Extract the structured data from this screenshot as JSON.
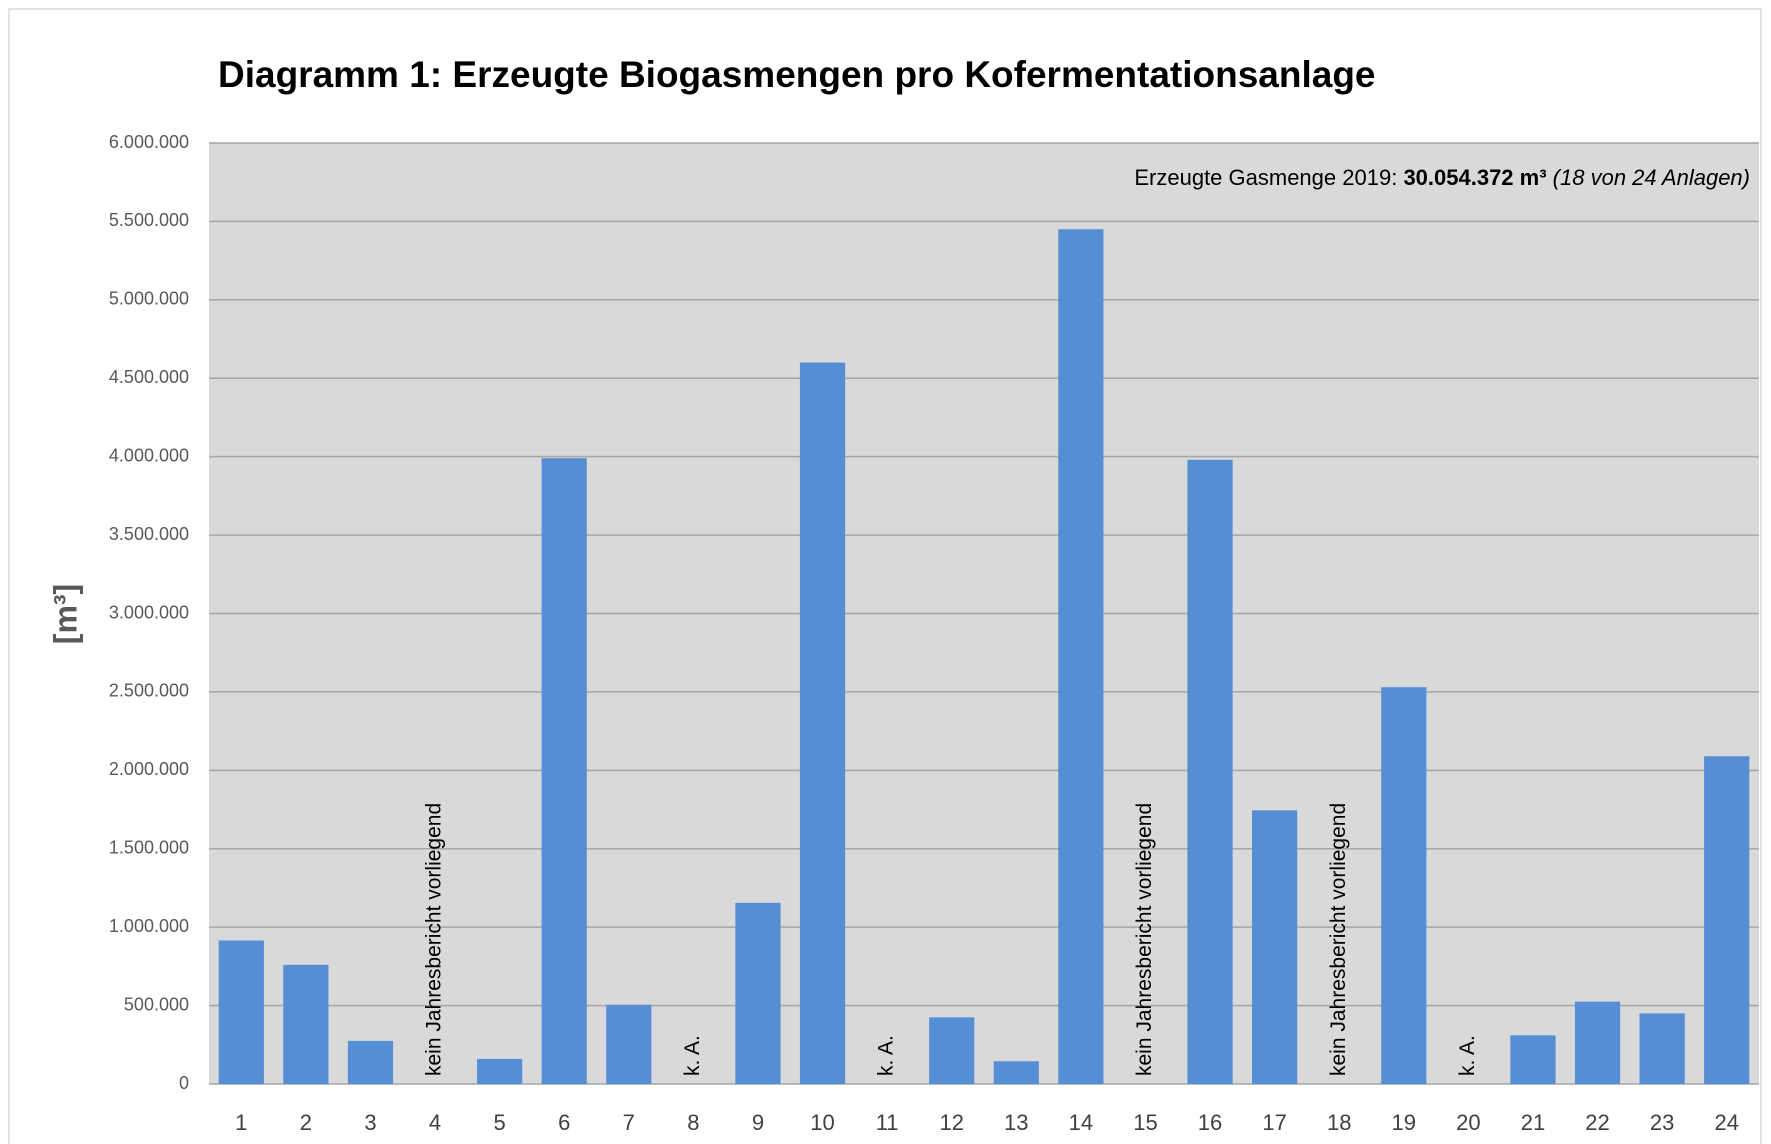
{
  "chart_data": {
    "type": "bar",
    "title": "Diagramm 1: Erzeugte Biogasmengen pro Kofermentationsanlage",
    "ylabel": "[m³]",
    "annotation": {
      "text": "Erzeugte Gasmenge 2019:",
      "total": "30.054.372  m³",
      "note": "(18 von 24 Anlagen)"
    },
    "categories": [
      "1",
      "2",
      "3",
      "4",
      "5",
      "6",
      "7",
      "8",
      "9",
      "10",
      "11",
      "12",
      "13",
      "14",
      "15",
      "16",
      "17",
      "18",
      "19",
      "20",
      "21",
      "22",
      "23",
      "24"
    ],
    "values": [
      915000,
      760000,
      275000,
      null,
      160000,
      3990000,
      505000,
      null,
      1155000,
      4600000,
      null,
      425000,
      145000,
      5450000,
      null,
      3980000,
      1745000,
      null,
      2530000,
      null,
      310000,
      525000,
      450000,
      2090000
    ],
    "gap_labels": [
      null,
      null,
      null,
      "kein Jahresbericht vorliegend",
      null,
      null,
      null,
      "k. A.",
      null,
      null,
      "k. A.",
      null,
      null,
      null,
      "kein Jahresbericht vorliegend",
      null,
      null,
      "kein Jahresbericht vorliegend",
      null,
      "k. A.",
      null,
      null,
      null,
      null
    ],
    "color": "#558ed5",
    "ylim": [
      0,
      6000000
    ],
    "yticks": [
      0,
      {
        "value": 500000,
        "label": "500.000"
      },
      {
        "value": 1000000,
        "label": "1.000.000"
      },
      {
        "value": 1500000,
        "label": "1.500.000"
      },
      {
        "value": 2000000,
        "label": "2.000.000"
      },
      {
        "value": 2500000,
        "label": "2.500.000"
      },
      {
        "value": 3000000,
        "label": "3.000.000"
      },
      {
        "value": 3500000,
        "label": "3.500.000"
      },
      {
        "value": 4000000,
        "label": "4.000.000"
      },
      {
        "value": 4500000,
        "label": "4.500.000"
      },
      {
        "value": 5000000,
        "label": "5.000.000"
      },
      {
        "value": 5500000,
        "label": "5.500.000"
      },
      {
        "value": 6000000,
        "label": "6.000.000"
      }
    ],
    "grid": true
  }
}
